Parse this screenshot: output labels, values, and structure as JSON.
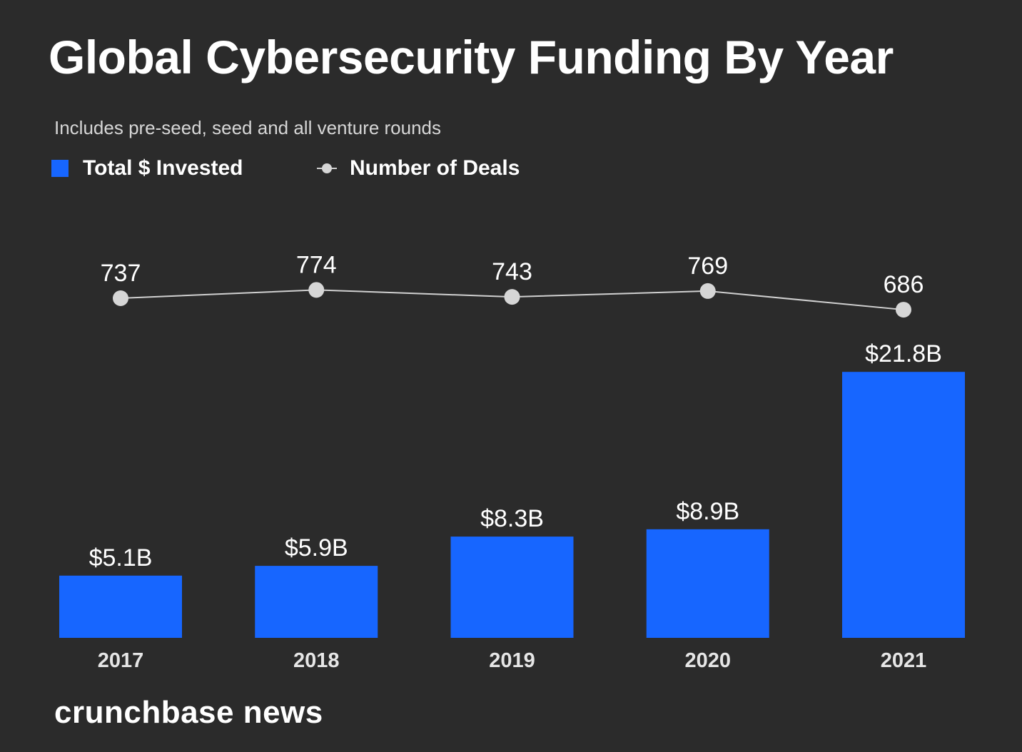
{
  "colors": {
    "background": "#2b2b2b",
    "bar": "#1766ff",
    "line": "#d0d0d0",
    "text": "#ffffff",
    "muted_text": "#d6d6d6"
  },
  "legend": {
    "bars_label": "Total $ Invested",
    "line_label": "Number of Deals"
  },
  "brand": "crunchbase news",
  "chart_data": {
    "type": "bar",
    "title": "Global Cybersecurity Funding By Year",
    "subtitle": "Includes pre-seed, seed and all venture rounds",
    "categories": [
      "2017",
      "2018",
      "2019",
      "2020",
      "2021"
    ],
    "series": [
      {
        "name": "Total $ Invested",
        "type": "bar",
        "values": [
          5.1,
          5.9,
          8.3,
          8.9,
          21.8
        ],
        "labels": [
          "$5.1B",
          "$5.9B",
          "$8.3B",
          "$8.9B",
          "$21.8B"
        ]
      },
      {
        "name": "Number of Deals",
        "type": "line",
        "values": [
          737,
          774,
          743,
          769,
          686
        ],
        "labels": [
          "737",
          "774",
          "743",
          "769",
          "686"
        ]
      }
    ],
    "grid": false,
    "legend_position": "top-left"
  }
}
